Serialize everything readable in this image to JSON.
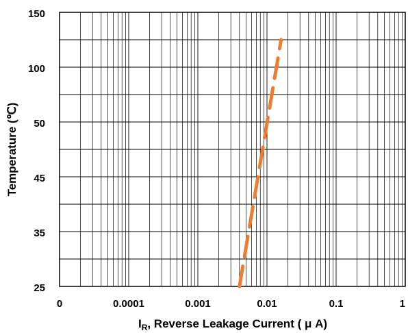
{
  "chart_data": {
    "type": "line",
    "title": "",
    "xlabel": {
      "main": "I",
      "sub": "R",
      "rest": ", Reverse Leakage Current ( μ A)"
    },
    "ylabel": "Temperature (℃)",
    "x_scale": "log",
    "x_tick_labels": [
      "0",
      "0.0001",
      "0.001",
      "0.01",
      "0.1",
      "1"
    ],
    "y_tick_labels": [
      "150",
      "100",
      "50",
      "45",
      "35",
      "25"
    ],
    "grid": true,
    "series": [
      {
        "line_style": "dashed",
        "color": "#ED7D31",
        "points": [
          {
            "x": 0.004,
            "y": 25
          },
          {
            "x": 0.016,
            "y": 125
          }
        ]
      }
    ]
  },
  "colors": {
    "series_line": "#ED7D31",
    "grid": "#000000",
    "background": "#ffffff"
  }
}
